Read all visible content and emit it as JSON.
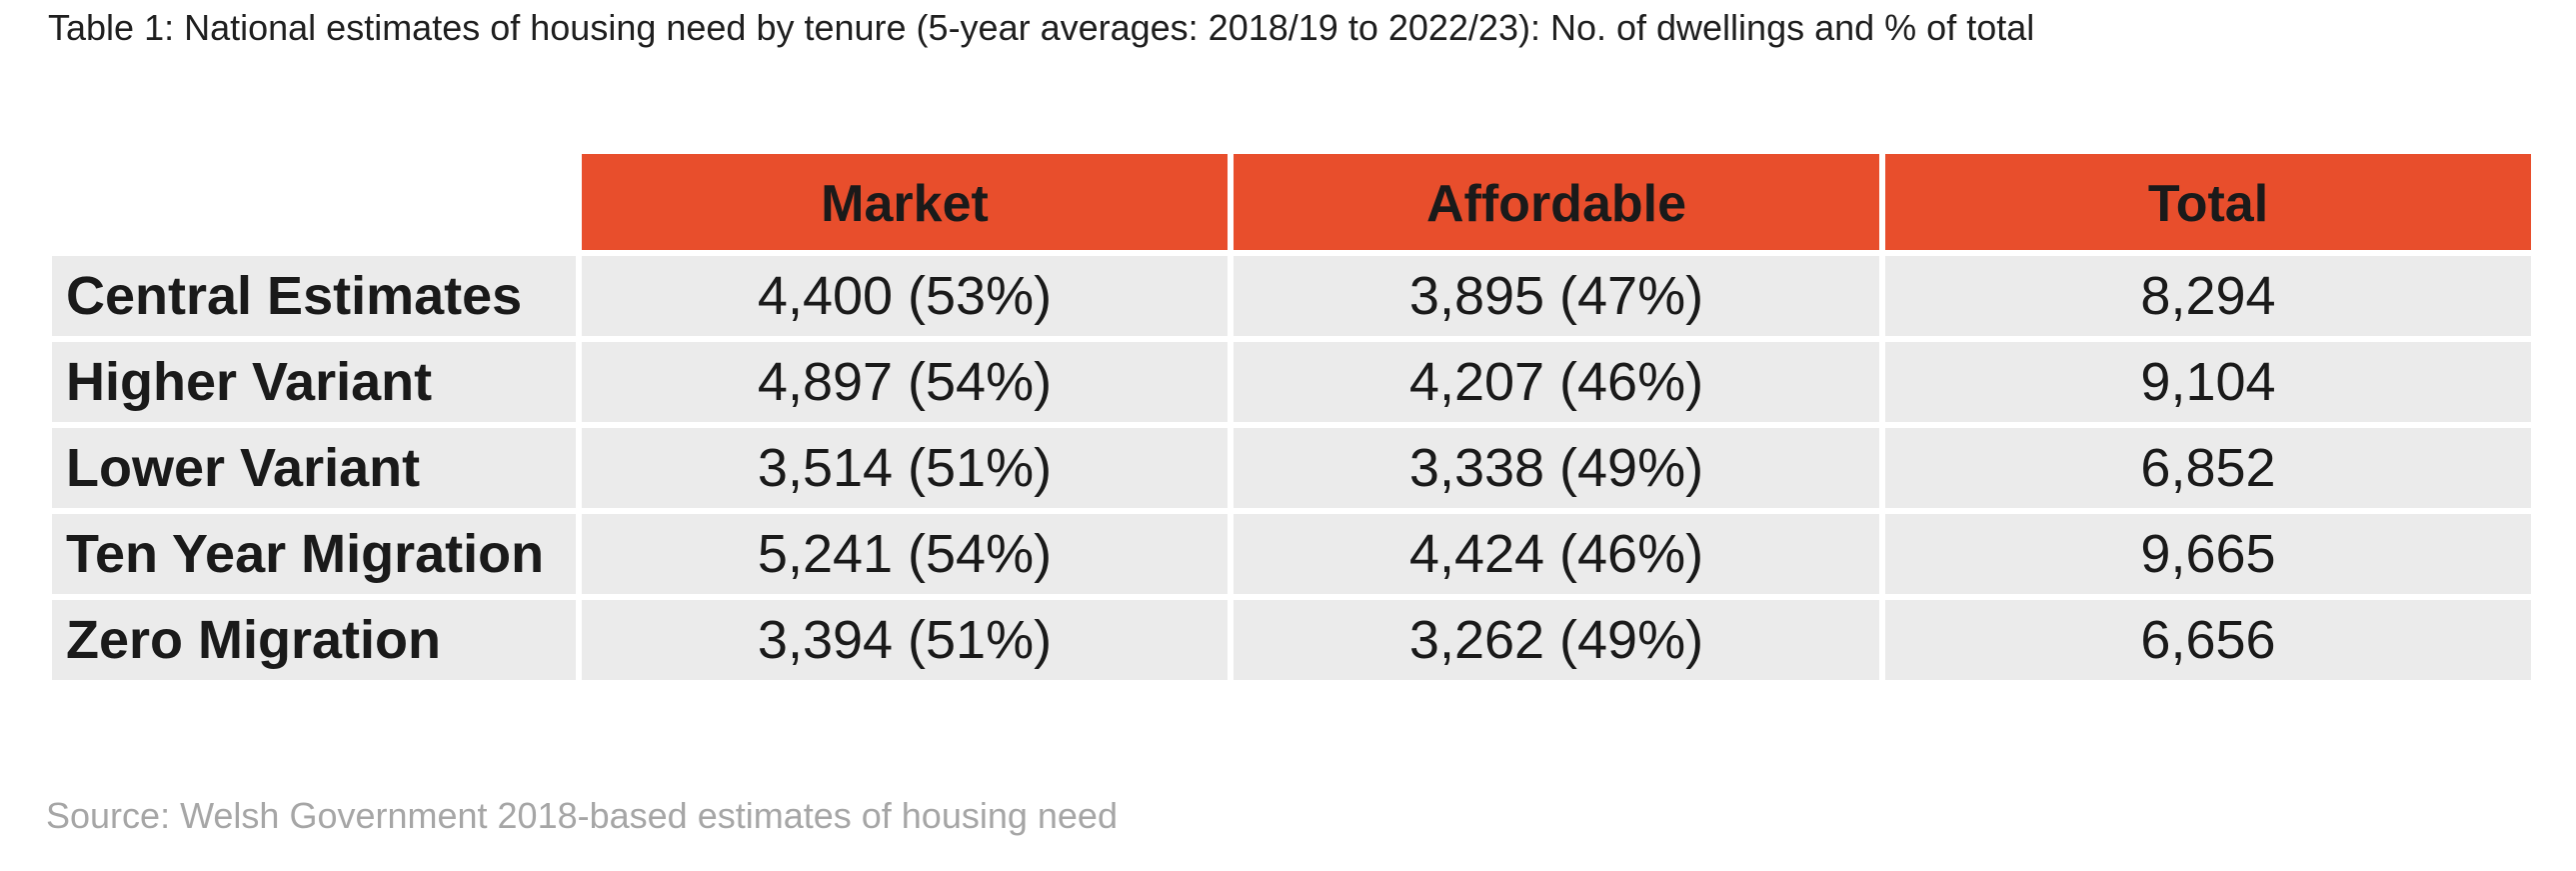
{
  "caption": "Table 1: National estimates of housing need by tenure (5-year averages: 2018/19 to 2022/23): No. of dwellings and % of total",
  "colors": {
    "header_bg": "#e84e2c",
    "cell_bg": "#ebebeb",
    "source_text": "#a6a6a6"
  },
  "table": {
    "columns": [
      "",
      "Market",
      "Affordable",
      "Total"
    ],
    "rows": [
      {
        "label": "Central Estimates",
        "market": "4,400 (53%)",
        "affordable": "3,895 (47%)",
        "total": "8,294"
      },
      {
        "label": "Higher Variant",
        "market": "4,897 (54%)",
        "affordable": "4,207 (46%)",
        "total": "9,104"
      },
      {
        "label": "Lower Variant",
        "market": "3,514 (51%)",
        "affordable": "3,338 (49%)",
        "total": "6,852"
      },
      {
        "label": "Ten Year Migration",
        "market": "5,241 (54%)",
        "affordable": "4,424 (46%)",
        "total": "9,665"
      },
      {
        "label": "Zero Migration",
        "market": "3,394 (51%)",
        "affordable": "3,262 (49%)",
        "total": "6,656"
      }
    ]
  },
  "source": "Source: Welsh Government 2018-based estimates of housing need"
}
